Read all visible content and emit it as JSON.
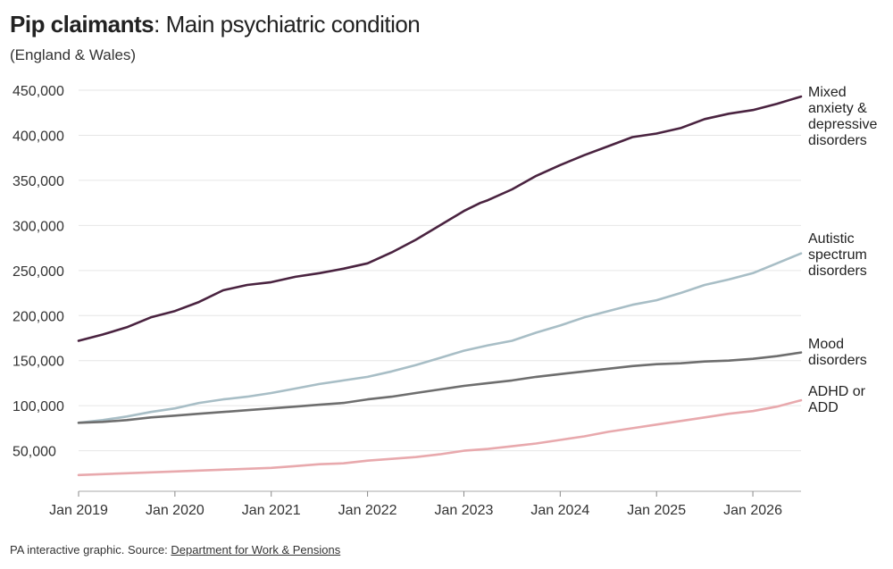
{
  "header": {
    "title_bold": "Pip claimants",
    "title_rest": ": Main psychiatric condition",
    "subtitle": "(England & Wales)"
  },
  "footer": {
    "prefix": "PA interactive graphic. Source: ",
    "source_link": "Department for Work & Pensions"
  },
  "chart_data": {
    "type": "line",
    "title": "Pip claimants: Main psychiatric condition",
    "subtitle": "(England & Wales)",
    "x_ticks": [
      "Jan 2019",
      "Jan 2020",
      "Jan 2021",
      "Jan 2022",
      "Jan 2023",
      "Jan 2024",
      "Jan 2025",
      "Jan 2026"
    ],
    "y_ticks": [
      "50,000",
      "100,000",
      "150,000",
      "200,000",
      "250,000",
      "300,000",
      "350,000",
      "400,000",
      "450,000"
    ],
    "y_tick_values": [
      50000,
      100000,
      150000,
      200000,
      250000,
      300000,
      350000,
      400000,
      450000
    ],
    "xlim": [
      2019.0,
      2026.5
    ],
    "ylim": [
      5000,
      455000
    ],
    "grid": "horizontal",
    "legend": "direct labels at line ends (right)",
    "series": [
      {
        "name": "Mixed anxiety & depressive disorders",
        "label_lines": [
          "Mixed",
          "anxiety &",
          "depressive",
          "disorders"
        ],
        "color": "#4a2340",
        "x": [
          2019.0,
          2019.25,
          2019.5,
          2019.75,
          2020.0,
          2020.25,
          2020.5,
          2020.75,
          2021.0,
          2021.25,
          2021.5,
          2021.75,
          2022.0,
          2022.25,
          2022.5,
          2022.75,
          2023.0,
          2023.17,
          2023.25,
          2023.5,
          2023.75,
          2024.0,
          2024.25,
          2024.5,
          2024.75,
          2025.0,
          2025.25,
          2025.5,
          2025.75,
          2026.0,
          2026.25,
          2026.5
        ],
        "y": [
          172000,
          179000,
          187000,
          198000,
          205000,
          215000,
          228000,
          234000,
          237000,
          243000,
          247000,
          252000,
          258000,
          270000,
          284000,
          300000,
          316000,
          325000,
          328000,
          340000,
          355000,
          367000,
          378000,
          388000,
          398000,
          402000,
          408000,
          418000,
          424000,
          428000,
          435000,
          443000
        ]
      },
      {
        "name": "Autistic spectrum disorders",
        "label_lines": [
          "Autistic",
          "spectrum",
          "disorders"
        ],
        "color": "#a8bec6",
        "x": [
          2019.0,
          2019.25,
          2019.5,
          2019.75,
          2020.0,
          2020.25,
          2020.5,
          2020.75,
          2021.0,
          2021.25,
          2021.5,
          2021.75,
          2022.0,
          2022.25,
          2022.5,
          2022.75,
          2023.0,
          2023.25,
          2023.5,
          2023.75,
          2024.0,
          2024.25,
          2024.5,
          2024.75,
          2025.0,
          2025.25,
          2025.5,
          2025.75,
          2026.0,
          2026.25,
          2026.5
        ],
        "y": [
          81000,
          84000,
          88000,
          93000,
          97000,
          103000,
          107000,
          110000,
          114000,
          119000,
          124000,
          128000,
          132000,
          138000,
          145000,
          153000,
          161000,
          167000,
          172000,
          181000,
          189000,
          198000,
          205000,
          212000,
          217000,
          225000,
          234000,
          240000,
          247000,
          258000,
          269000
        ]
      },
      {
        "name": "Mood disorders",
        "label_lines": [
          "Mood",
          "disorders"
        ],
        "color": "#6e6e6e",
        "x": [
          2019.0,
          2019.25,
          2019.5,
          2019.75,
          2020.0,
          2020.25,
          2020.5,
          2020.75,
          2021.0,
          2021.25,
          2021.5,
          2021.75,
          2022.0,
          2022.25,
          2022.5,
          2022.75,
          2023.0,
          2023.25,
          2023.5,
          2023.75,
          2024.0,
          2024.25,
          2024.5,
          2024.75,
          2025.0,
          2025.25,
          2025.5,
          2025.75,
          2026.0,
          2026.25,
          2026.5
        ],
        "y": [
          81000,
          82000,
          84000,
          87000,
          89000,
          91000,
          93000,
          95000,
          97000,
          99000,
          101000,
          103000,
          107000,
          110000,
          114000,
          118000,
          122000,
          125000,
          128000,
          132000,
          135000,
          138000,
          141000,
          144000,
          146000,
          147000,
          149000,
          150000,
          152000,
          155000,
          159000
        ]
      },
      {
        "name": "ADHD or ADD",
        "label_lines": [
          "ADHD or",
          "ADD"
        ],
        "color": "#e8a9ad",
        "x": [
          2019.0,
          2019.25,
          2019.5,
          2019.75,
          2020.0,
          2020.25,
          2020.5,
          2020.75,
          2021.0,
          2021.25,
          2021.5,
          2021.75,
          2022.0,
          2022.25,
          2022.5,
          2022.75,
          2023.0,
          2023.25,
          2023.5,
          2023.75,
          2024.0,
          2024.25,
          2024.5,
          2024.75,
          2025.0,
          2025.25,
          2025.5,
          2025.75,
          2026.0,
          2026.25,
          2026.5
        ],
        "y": [
          23000,
          24000,
          25000,
          26000,
          27000,
          28000,
          29000,
          30000,
          31000,
          33000,
          35000,
          36000,
          39000,
          41000,
          43000,
          46000,
          50000,
          52000,
          55000,
          58000,
          62000,
          66000,
          71000,
          75000,
          79000,
          83000,
          87000,
          91000,
          94000,
          99000,
          106000
        ]
      }
    ]
  }
}
